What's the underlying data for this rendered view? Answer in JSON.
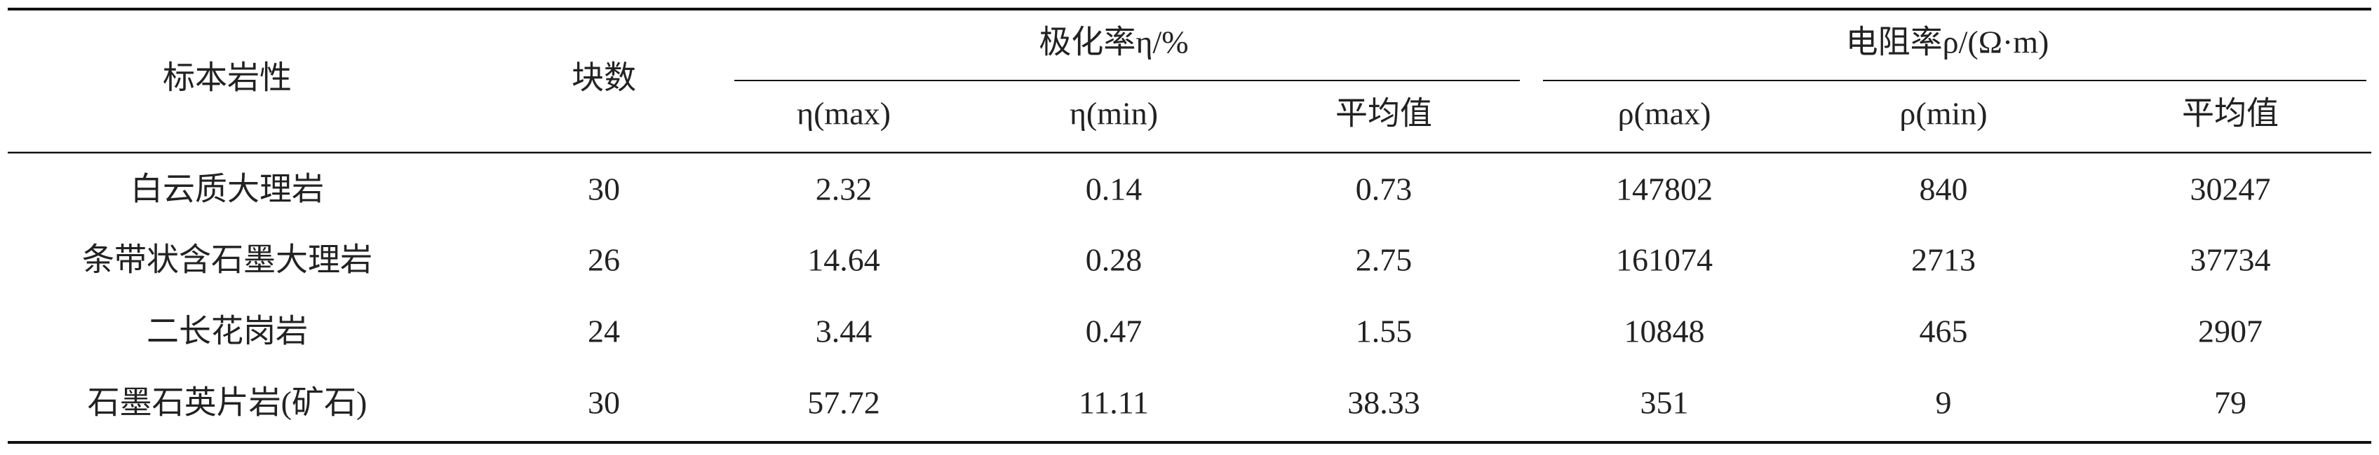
{
  "table": {
    "header": {
      "single": [
        "标本岩性",
        "块数"
      ],
      "groups": [
        {
          "title": "极化率η/%",
          "columns": [
            "η(max)",
            "η(min)",
            "平均值"
          ]
        },
        {
          "title": "电阻率ρ/(Ω·m)",
          "columns": [
            "ρ(max)",
            "ρ(min)",
            "平均值"
          ]
        }
      ]
    },
    "rows": [
      [
        "白云质大理岩",
        "30",
        "2.32",
        "0.14",
        "0.73",
        "147802",
        "840",
        "30247"
      ],
      [
        "条带状含石墨大理岩",
        "26",
        "14.64",
        "0.28",
        "2.75",
        "161074",
        "2713",
        "37734"
      ],
      [
        "二长花岗岩",
        "24",
        "3.44",
        "0.47",
        "1.55",
        "10848",
        "465",
        "2907"
      ],
      [
        "石墨石英片岩(矿石)",
        "30",
        "57.72",
        "11.11",
        "38.33",
        "351",
        "9",
        "79"
      ]
    ]
  }
}
